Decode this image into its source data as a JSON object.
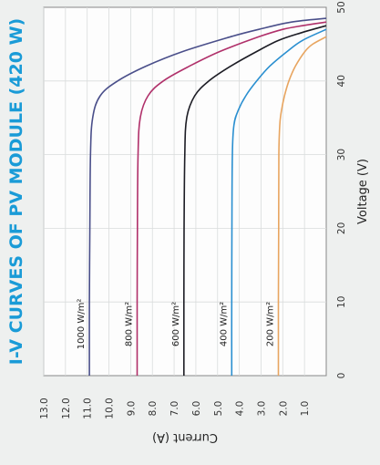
{
  "chart_data": {
    "type": "line",
    "title": "I-V CURVES OF PV MODULE (420 W)",
    "xlabel": "Voltage (V)",
    "ylabel": "Current (A)",
    "xlim": [
      0,
      50
    ],
    "ylim": [
      0,
      13
    ],
    "x_ticks": [
      "0",
      "10",
      "20",
      "30",
      "40",
      "50"
    ],
    "y_ticks": [
      "1.0",
      "2.0",
      "3.0",
      "4.0",
      "5.0",
      "6.0",
      "7.0",
      "8.0",
      "9.0",
      "10.0",
      "11.0",
      "12.0",
      "13.0"
    ],
    "grid": true,
    "orientation": "rotated 90 degrees counter-clockwise",
    "series": [
      {
        "name": "1000 W/m²",
        "color": "#4a4f8a",
        "isc": 10.9,
        "knee_voltage": 39.5,
        "voc": 48.5,
        "points": [
          [
            0,
            10.9
          ],
          [
            10,
            10.9
          ],
          [
            20,
            10.88
          ],
          [
            30,
            10.85
          ],
          [
            35,
            10.75
          ],
          [
            38,
            10.4
          ],
          [
            40,
            9.6
          ],
          [
            42,
            8.3
          ],
          [
            44,
            6.6
          ],
          [
            46,
            4.4
          ],
          [
            47,
            3.1
          ],
          [
            48,
            1.6
          ],
          [
            48.5,
            0
          ]
        ]
      },
      {
        "name": "800 W/m²",
        "color": "#b0306a",
        "isc": 8.7,
        "knee_voltage": 38.5,
        "voc": 48.0,
        "points": [
          [
            0,
            8.7
          ],
          [
            10,
            8.7
          ],
          [
            20,
            8.69
          ],
          [
            30,
            8.66
          ],
          [
            35,
            8.56
          ],
          [
            38,
            8.2
          ],
          [
            40,
            7.5
          ],
          [
            42,
            6.3
          ],
          [
            44,
            4.9
          ],
          [
            46,
            3.1
          ],
          [
            47,
            2.0
          ],
          [
            47.5,
            1.1
          ],
          [
            48,
            0
          ]
        ]
      },
      {
        "name": "600 W/m²",
        "color": "#1c1c24",
        "isc": 6.55,
        "knee_voltage": 37.5,
        "voc": 47.5,
        "points": [
          [
            0,
            6.55
          ],
          [
            10,
            6.55
          ],
          [
            20,
            6.54
          ],
          [
            30,
            6.51
          ],
          [
            35,
            6.42
          ],
          [
            38,
            6.05
          ],
          [
            40,
            5.4
          ],
          [
            42,
            4.4
          ],
          [
            44,
            3.2
          ],
          [
            45.5,
            2.2
          ],
          [
            46.5,
            1.2
          ],
          [
            47.5,
            0
          ]
        ]
      },
      {
        "name": "400 W/m²",
        "color": "#2a8fd0",
        "isc": 4.35,
        "knee_voltage": 36.5,
        "voc": 47.0,
        "points": [
          [
            0,
            4.35
          ],
          [
            10,
            4.35
          ],
          [
            20,
            4.34
          ],
          [
            30,
            4.32
          ],
          [
            34,
            4.25
          ],
          [
            36,
            4.05
          ],
          [
            38,
            3.7
          ],
          [
            40,
            3.2
          ],
          [
            42,
            2.6
          ],
          [
            44,
            1.8
          ],
          [
            45.5,
            1.1
          ],
          [
            47,
            0
          ]
        ]
      },
      {
        "name": "200 W/m²",
        "color": "#e8a560",
        "isc": 2.2,
        "knee_voltage": 36.0,
        "voc": 46.0,
        "points": [
          [
            0,
            2.2
          ],
          [
            10,
            2.2
          ],
          [
            20,
            2.19
          ],
          [
            30,
            2.18
          ],
          [
            34,
            2.14
          ],
          [
            36,
            2.06
          ],
          [
            38,
            1.92
          ],
          [
            40,
            1.72
          ],
          [
            42,
            1.42
          ],
          [
            44,
            0.98
          ],
          [
            45,
            0.62
          ],
          [
            46,
            0
          ]
        ]
      }
    ]
  }
}
